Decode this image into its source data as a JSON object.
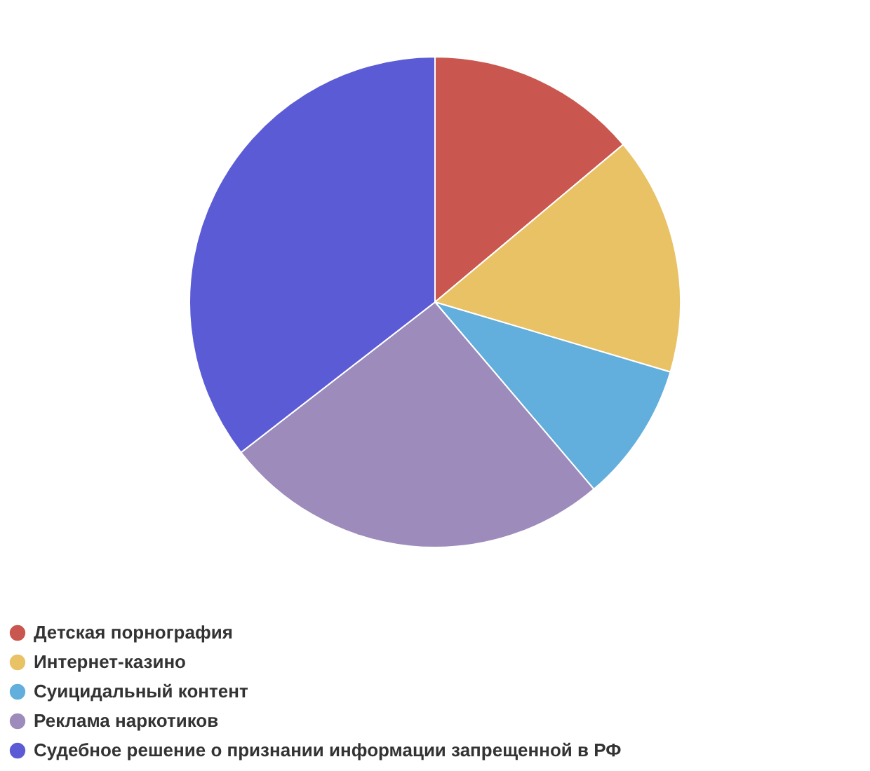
{
  "chart_data": {
    "type": "pie",
    "categories": [
      "Детская порнография",
      "Интернет-казино",
      "Суицидальный контент",
      "Реклама наркотиков",
      "Судебное решение о признании информации запрещенной в РФ"
    ],
    "values": [
      13.9,
      15.7,
      9.2,
      25.7,
      35.5
    ],
    "colors": [
      "#c9574f",
      "#e8c265",
      "#62aedc",
      "#9d8bbb",
      "#5b5bd6"
    ],
    "legend": "bottom"
  }
}
